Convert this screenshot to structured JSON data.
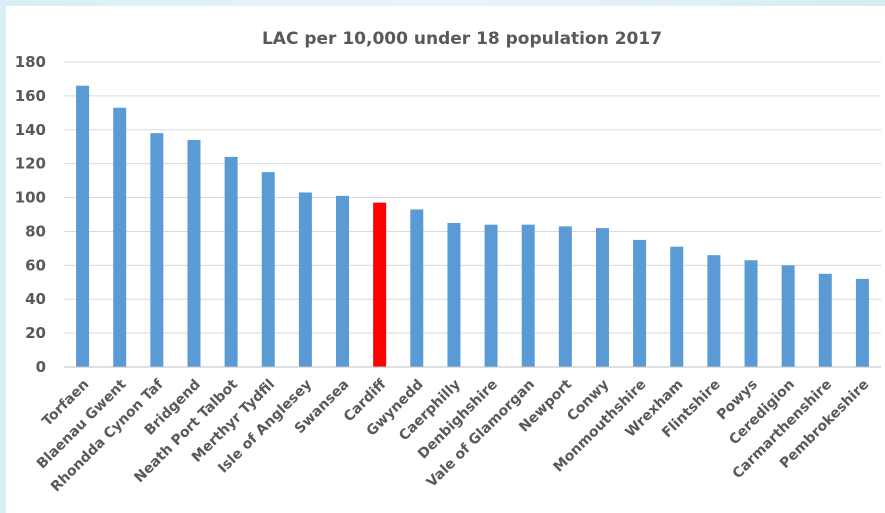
{
  "chart_data": {
    "type": "bar",
    "title": "LAC per 10,000 under 18 population 2017",
    "xlabel": "",
    "ylabel": "",
    "ylim": [
      0,
      180
    ],
    "yticks": [
      0,
      20,
      40,
      60,
      80,
      100,
      120,
      140,
      160,
      180
    ],
    "grid": true,
    "legend": "none",
    "categories": [
      "Torfaen",
      "Blaenau Gwent",
      "Rhondda Cynon Taf",
      "Bridgend",
      "Neath Port Talbot",
      "Merthyr Tydfil",
      "Isle of Anglesey",
      "Swansea",
      "Cardiff",
      "Gwynedd",
      "Caerphilly",
      "Denbighshire",
      "Vale of Glamorgan",
      "Newport",
      "Conwy",
      "Monmouthshire",
      "Wrexham",
      "Flintshire",
      "Powys",
      "Ceredigion",
      "Carmarthenshire",
      "Pembrokeshire"
    ],
    "values": [
      166,
      153,
      138,
      134,
      124,
      115,
      103,
      101,
      97,
      93,
      85,
      84,
      84,
      83,
      82,
      75,
      71,
      66,
      63,
      60,
      55,
      52
    ],
    "bar_color": "#5b9bd5",
    "highlight": {
      "category": "Cardiff",
      "color": "#ff0000"
    }
  }
}
